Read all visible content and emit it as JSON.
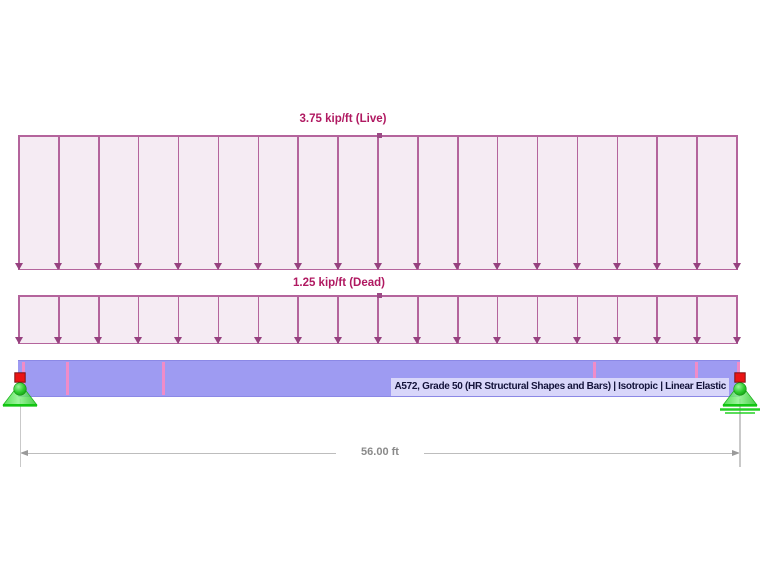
{
  "loads": [
    {
      "id": "live",
      "label": "3.75 kip/ft (Live)",
      "arrow_count": 19
    },
    {
      "id": "dead",
      "label": "1.25 kip/ft (Dead)",
      "arrow_count": 19
    }
  ],
  "member": {
    "material_label": "A572, Grade 50 (HR Structural Shapes and Bars) | Isotropic | Linear Elastic"
  },
  "dimension": {
    "label": "56.00 ft"
  },
  "supports": {
    "left": "pinned",
    "right": "roller"
  },
  "colors": {
    "load_fill": "#f5ebf3",
    "load_line": "#b4649c",
    "load_arrowhead": "#96417f",
    "load_label_text": "#b01961",
    "beam_fill": "#9e9bf2",
    "beam_tick": "#f08cc8",
    "material_label_bg": "#d8d6fa",
    "material_label_text": "#13133a",
    "support_green": "#2ecc2e",
    "support_node_red": "#ea1414",
    "dimension_gray": "#9a9a9a"
  }
}
